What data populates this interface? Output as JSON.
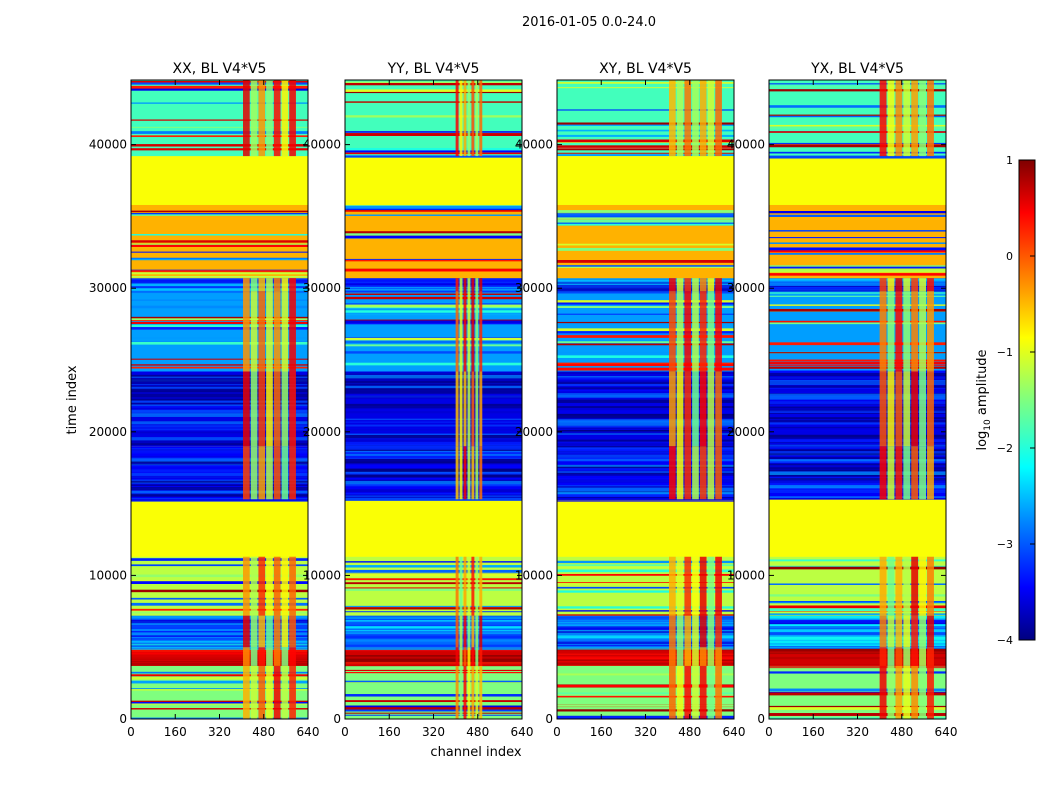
{
  "figure": {
    "suptitle": "2016-01-05 0.0-24.0",
    "xlabel": "channel index",
    "ylabel": "time index"
  },
  "colorbar": {
    "label_prefix": "log",
    "label_sub": "10",
    "label_suffix": " amplitude",
    "range": [
      -4,
      1
    ],
    "ticks": [
      1,
      0,
      -1,
      -2,
      -3,
      -4
    ],
    "tick_labels": [
      "1",
      "0",
      "−1",
      "−2",
      "−3",
      "−4"
    ],
    "colormap": "jet",
    "colors": [
      "#00007f",
      "#0000ff",
      "#007fff",
      "#00ffff",
      "#7fff7f",
      "#ffff00",
      "#ff7f00",
      "#ff0000",
      "#7f0000"
    ]
  },
  "chart_data": {
    "type": "heatmap",
    "xlim": [
      0,
      640
    ],
    "ylim": [
      0,
      44500
    ],
    "x_ticks": [
      0,
      160,
      320,
      480,
      640
    ],
    "x_tick_labels": [
      "0",
      "160",
      "320",
      "480",
      "640"
    ],
    "y_ticks": [
      0,
      10000,
      20000,
      30000,
      40000
    ],
    "y_tick_labels": [
      "0",
      "10000",
      "20000",
      "30000",
      "40000"
    ],
    "value_name": "log10 amplitude",
    "panels": [
      {
        "title": "XX, BL V4*V5",
        "column_band": [
          405,
          600
        ]
      },
      {
        "title": "YY, BL V4*V5",
        "column_band": [
          400,
          500
        ]
      },
      {
        "title": "XY, BL V4*V5",
        "column_band": [
          405,
          600
        ]
      },
      {
        "title": "YX, BL V4*V5",
        "column_band": [
          400,
          600
        ]
      }
    ],
    "time_segments": [
      {
        "start": 0,
        "end": 3700,
        "level": -1.5,
        "kind": "striped"
      },
      {
        "start": 3700,
        "end": 5000,
        "level": 0.6,
        "kind": "rfi"
      },
      {
        "start": 5000,
        "end": 7200,
        "level": -2.8,
        "kind": "noise"
      },
      {
        "start": 7200,
        "end": 11300,
        "level": -1.2,
        "kind": "striped"
      },
      {
        "start": 11300,
        "end": 15300,
        "level": -0.9,
        "kind": "flagged"
      },
      {
        "start": 15300,
        "end": 19000,
        "level": -3.4,
        "kind": "noise"
      },
      {
        "start": 19000,
        "end": 24200,
        "level": -3.5,
        "kind": "noise"
      },
      {
        "start": 24200,
        "end": 29800,
        "level": -2.6,
        "kind": "striped"
      },
      {
        "start": 29800,
        "end": 30700,
        "level": -3.0,
        "kind": "noise"
      },
      {
        "start": 30700,
        "end": 35800,
        "level": -0.5,
        "kind": "flagged_striped"
      },
      {
        "start": 35800,
        "end": 39200,
        "level": -0.9,
        "kind": "flagged"
      },
      {
        "start": 39200,
        "end": 44500,
        "level": -1.8,
        "kind": "striped"
      }
    ]
  }
}
